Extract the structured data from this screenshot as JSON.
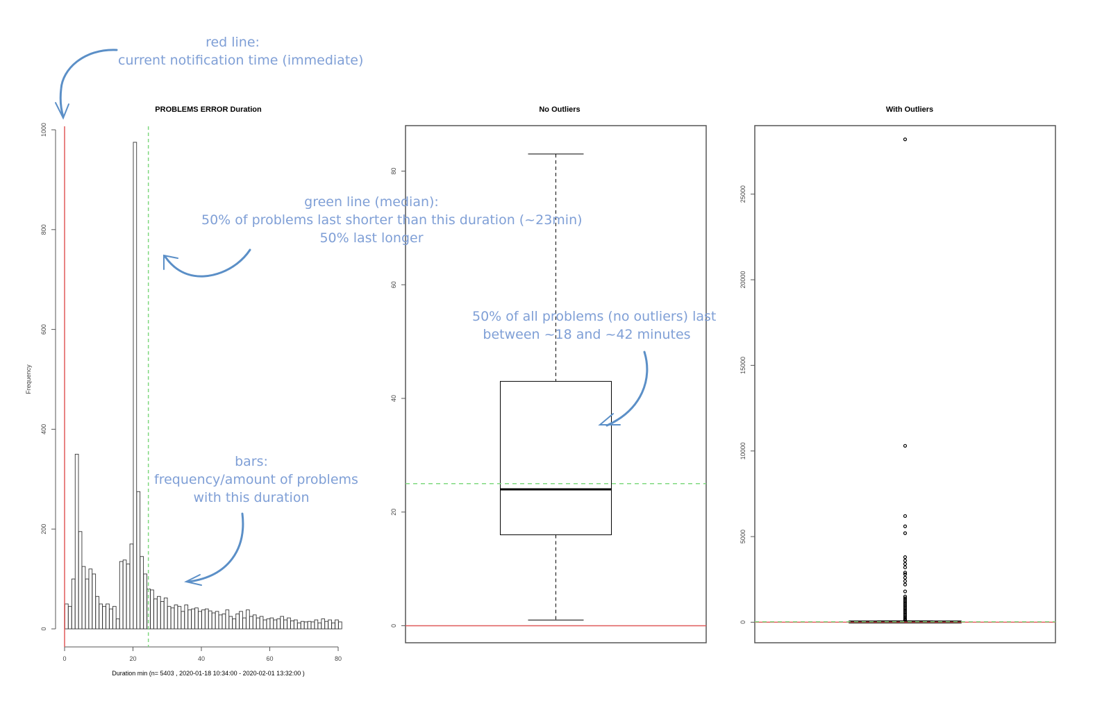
{
  "annotations": {
    "red_line": {
      "lines": [
        "red line:",
        "current notification time (immediate)"
      ]
    },
    "green_line": {
      "lines": [
        "green line (median):",
        "50% of problems last shorter than this duration (~23min)",
        "50% last longer"
      ]
    },
    "iqr": {
      "lines": [
        "50% of all problems (no outliers) last",
        "between ~18 and ~42 minutes"
      ]
    },
    "bars": {
      "lines": [
        "bars:",
        "frequency/amount of problems",
        "with this duration"
      ]
    }
  },
  "colors": {
    "annotation": "#7f9fd6",
    "arrow": "#5b8fc7",
    "red_line": "#e05a5a",
    "green_line": "#7fd87f",
    "bar_stroke": "#333333",
    "axis": "#555555"
  },
  "chart_data": [
    {
      "type": "bar",
      "title": "PROBLEMS ERROR  Duration",
      "xlabel": "Duration min (n= 5403 ,  2020-01-18 10:34:00 - 2020-02-01 13:32:00 )",
      "ylabel": "Frequency",
      "xlim": [
        0,
        82
      ],
      "ylim": [
        0,
        1000
      ],
      "x_ticks": [
        0,
        20,
        40,
        60,
        80
      ],
      "y_ticks": [
        0,
        200,
        400,
        600,
        800,
        1000
      ],
      "bin_width": 1,
      "bin_starts": [
        1,
        2,
        3,
        4,
        5,
        6,
        7,
        8,
        9,
        10,
        11,
        12,
        13,
        14,
        15,
        16,
        17,
        18,
        19,
        20,
        21,
        22,
        23,
        24,
        25,
        26,
        27,
        28,
        29,
        30,
        31,
        32,
        33,
        34,
        35,
        36,
        37,
        38,
        39,
        40,
        41,
        42,
        43,
        44,
        45,
        46,
        47,
        48,
        49,
        50,
        51,
        52,
        53,
        54,
        55,
        56,
        57,
        58,
        59,
        60,
        61,
        62,
        63,
        64,
        65,
        66,
        67,
        68,
        69,
        70,
        71,
        72,
        73,
        74,
        75,
        76,
        77,
        78,
        79,
        80,
        81
      ],
      "values": [
        50,
        45,
        100,
        350,
        195,
        125,
        100,
        120,
        110,
        65,
        50,
        45,
        50,
        40,
        45,
        20,
        135,
        138,
        130,
        170,
        975,
        275,
        145,
        110,
        80,
        78,
        60,
        65,
        55,
        62,
        45,
        42,
        48,
        45,
        35,
        48,
        38,
        40,
        42,
        35,
        38,
        40,
        36,
        32,
        35,
        28,
        30,
        38,
        25,
        20,
        30,
        35,
        22,
        38,
        25,
        28,
        22,
        25,
        18,
        20,
        22,
        18,
        20,
        25,
        18,
        22,
        16,
        18,
        12,
        15,
        14,
        15,
        14,
        18,
        12,
        20,
        15,
        18,
        12,
        18,
        14
      ],
      "reference_lines": [
        {
          "name": "current notification time",
          "axis": "x",
          "value": 0,
          "color": "#e05a5a",
          "style": "solid"
        },
        {
          "name": "median",
          "axis": "x",
          "value": 24.5,
          "color": "#7fd87f",
          "style": "dashed"
        }
      ]
    },
    {
      "type": "boxplot",
      "title": "No Outliers",
      "ylim": [
        -3,
        88
      ],
      "y_ticks": [
        0,
        20,
        40,
        60,
        80
      ],
      "stats": {
        "lower_whisker": 1,
        "q1": 16,
        "median": 24,
        "q3": 43,
        "upper_whisker": 83
      },
      "reference_lines": [
        {
          "name": "current notification time",
          "axis": "y",
          "value": 0,
          "color": "#e05a5a",
          "style": "solid"
        },
        {
          "name": "median",
          "axis": "y",
          "value": 25,
          "color": "#7fd87f",
          "style": "dashed"
        }
      ]
    },
    {
      "type": "boxplot",
      "title": "With Outliers",
      "ylim": [
        -1200,
        29000
      ],
      "y_ticks": [
        0,
        5000,
        10000,
        15000,
        20000,
        25000
      ],
      "stats": {
        "lower_whisker": 1,
        "q1": 16,
        "median": 24,
        "q3": 43,
        "upper_whisker": 83
      },
      "outliers": [
        28200,
        10300,
        6200,
        5600,
        5200,
        3800,
        3600,
        3400,
        3200,
        2900,
        2800,
        2600,
        2400,
        2200,
        1800,
        1500,
        1400,
        1300,
        1200,
        1100,
        1000,
        900,
        800,
        700,
        600,
        500,
        400,
        300,
        200,
        150,
        120,
        100
      ],
      "reference_lines": [
        {
          "name": "current notification time",
          "axis": "y",
          "value": 0,
          "color": "#e05a5a",
          "style": "solid"
        },
        {
          "name": "median",
          "axis": "y",
          "value": 25,
          "color": "#7fd87f",
          "style": "dashed"
        }
      ]
    }
  ]
}
